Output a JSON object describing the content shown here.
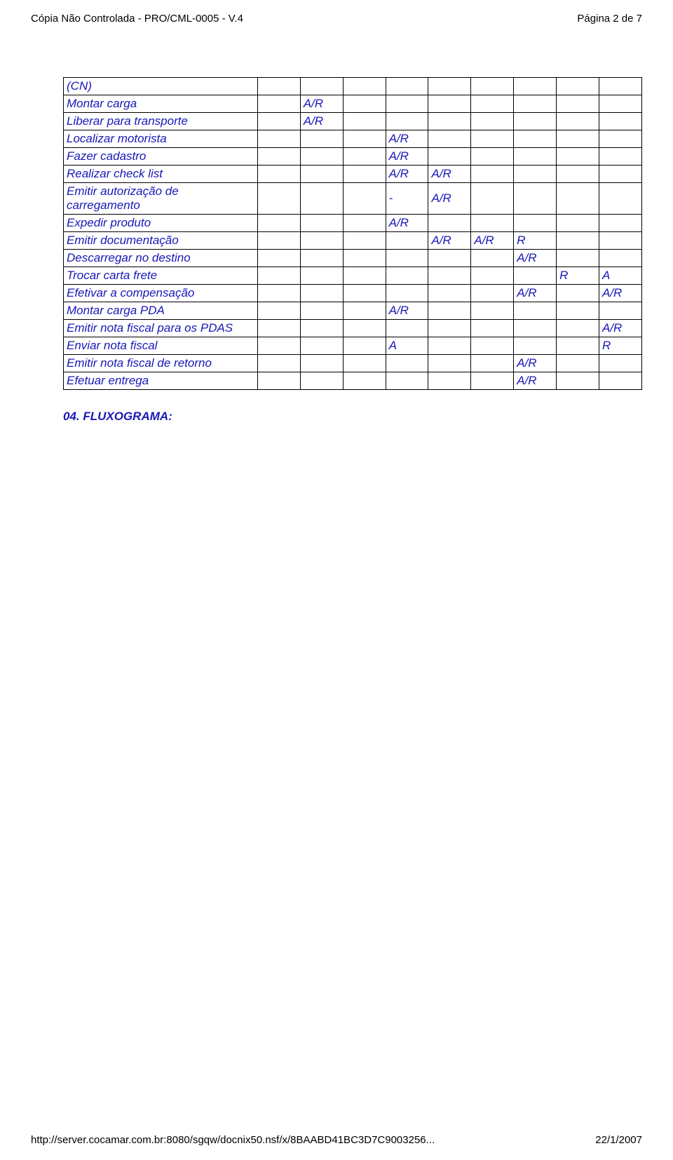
{
  "header": {
    "left": "Cópia Não Controlada - PRO/CML-0005 - V.4",
    "right": "Página 2 de 7"
  },
  "table": {
    "rows": [
      {
        "c0": "(CN)",
        "c1": "",
        "c2": "",
        "c3": "",
        "c4": "",
        "c5": "",
        "c6": "",
        "c7": "",
        "c8": "",
        "c9": ""
      },
      {
        "c0": "Montar carga",
        "c1": "",
        "c2": "A/R",
        "c3": "",
        "c4": "",
        "c5": "",
        "c6": "",
        "c7": "",
        "c8": "",
        "c9": ""
      },
      {
        "c0": "Liberar para transporte",
        "c1": "",
        "c2": "A/R",
        "c3": "",
        "c4": "",
        "c5": "",
        "c6": "",
        "c7": "",
        "c8": "",
        "c9": ""
      },
      {
        "c0": "Localizar motorista",
        "c1": "",
        "c2": "",
        "c3": "",
        "c4": "A/R",
        "c5": "",
        "c6": "",
        "c7": "",
        "c8": "",
        "c9": ""
      },
      {
        "c0": "Fazer cadastro",
        "c1": "",
        "c2": "",
        "c3": "",
        "c4": "A/R",
        "c5": "",
        "c6": "",
        "c7": "",
        "c8": "",
        "c9": ""
      },
      {
        "c0": "Realizar check list",
        "c1": "",
        "c2": "",
        "c3": "",
        "c4": "A/R",
        "c5": "A/R",
        "c6": "",
        "c7": "",
        "c8": "",
        "c9": ""
      },
      {
        "c0": "Emitir autorização de carregamento",
        "c1": "",
        "c2": "",
        "c3": "",
        "c4": "-",
        "c5": "A/R",
        "c6": "",
        "c7": "",
        "c8": "",
        "c9": ""
      },
      {
        "c0": "Expedir produto",
        "c1": "",
        "c2": "",
        "c3": "",
        "c4": "A/R",
        "c5": "",
        "c6": "",
        "c7": "",
        "c8": "",
        "c9": ""
      },
      {
        "c0": "Emitir documentação",
        "c1": "",
        "c2": "",
        "c3": "",
        "c4": "",
        "c5": "A/R",
        "c6": "A/R",
        "c7": "R",
        "c8": "",
        "c9": ""
      },
      {
        "c0": "Descarregar no destino",
        "c1": "",
        "c2": "",
        "c3": "",
        "c4": "",
        "c5": "",
        "c6": "",
        "c7": "A/R",
        "c8": "",
        "c9": ""
      },
      {
        "c0": "Trocar carta frete",
        "c1": "",
        "c2": "",
        "c3": "",
        "c4": "",
        "c5": "",
        "c6": "",
        "c7": "",
        "c8": "R",
        "c9": "A"
      },
      {
        "c0": "Efetivar a compensação",
        "c1": "",
        "c2": "",
        "c3": "",
        "c4": "",
        "c5": "",
        "c6": "",
        "c7": "A/R",
        "c8": "",
        "c9": "A/R"
      },
      {
        "c0": "Montar carga PDA",
        "c1": "",
        "c2": "",
        "c3": "",
        "c4": "A/R",
        "c5": "",
        "c6": "",
        "c7": "",
        "c8": "",
        "c9": ""
      },
      {
        "c0": "Emitir nota fiscal para os PDAS",
        "c1": "",
        "c2": "",
        "c3": "",
        "c4": "",
        "c5": "",
        "c6": "",
        "c7": "",
        "c8": "",
        "c9": "A/R"
      },
      {
        "c0": "Enviar nota fiscal",
        "c1": "",
        "c2": "",
        "c3": "",
        "c4": "A",
        "c5": "",
        "c6": "",
        "c7": "",
        "c8": "",
        "c9": "R"
      },
      {
        "c0": "Emitir nota fiscal de retorno",
        "c1": "",
        "c2": "",
        "c3": "",
        "c4": "",
        "c5": "",
        "c6": "",
        "c7": "A/R",
        "c8": "",
        "c9": ""
      },
      {
        "c0": "Efetuar entrega",
        "c1": "",
        "c2": "",
        "c3": "",
        "c4": "",
        "c5": "",
        "c6": "",
        "c7": "A/R",
        "c8": "",
        "c9": ""
      }
    ]
  },
  "section_title": "04. FLUXOGRAMA:",
  "footer": {
    "left": "http://server.cocamar.com.br:8080/sgqw/docnix50.nsf/x/8BAABD41BC3D7C9003256...",
    "right": "22/1/2007"
  }
}
